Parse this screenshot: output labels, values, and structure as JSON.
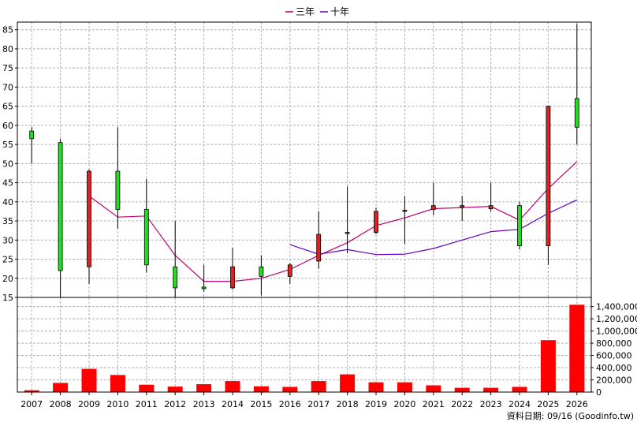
{
  "chart_data": {
    "type": "candlestick",
    "legend": [
      {
        "name": "三年",
        "color": "#c00070"
      },
      {
        "name": "十年",
        "color": "#6600cc"
      }
    ],
    "years": [
      "2007",
      "2008",
      "2009",
      "2010",
      "2011",
      "2012",
      "2013",
      "2014",
      "2015",
      "2016",
      "2017",
      "2018",
      "2019",
      "2020",
      "2021",
      "2022",
      "2023",
      "2024",
      "2025",
      "2026"
    ],
    "candles": [
      {
        "open": 56.5,
        "close": 58.5,
        "high": 59.5,
        "low": 50.0
      },
      {
        "open": 22.0,
        "close": 55.5,
        "high": 56.5,
        "low": 15.0
      },
      {
        "open": 48.0,
        "close": 23.0,
        "high": 48.5,
        "low": 18.5
      },
      {
        "open": 38.0,
        "close": 48.0,
        "high": 59.5,
        "low": 33.0
      },
      {
        "open": 23.5,
        "close": 38.0,
        "high": 46.0,
        "low": 21.5
      },
      {
        "open": 17.5,
        "close": 23.0,
        "high": 35.0,
        "low": 15.0
      },
      {
        "open": 17.3,
        "close": 17.7,
        "high": 23.5,
        "low": 16.5
      },
      {
        "open": 23.0,
        "close": 17.5,
        "high": 28.0,
        "low": 17.0
      },
      {
        "open": 20.5,
        "close": 23.0,
        "high": 26.0,
        "low": 15.5
      },
      {
        "open": 23.5,
        "close": 20.5,
        "high": 24.0,
        "low": 18.5
      },
      {
        "open": 31.5,
        "close": 24.5,
        "high": 37.5,
        "low": 22.5
      },
      {
        "open": 32.0,
        "close": 31.8,
        "high": 44.0,
        "low": 26.5
      },
      {
        "open": 37.5,
        "close": 32.0,
        "high": 38.5,
        "low": 31.5
      },
      {
        "open": 37.8,
        "close": 37.5,
        "high": 41.5,
        "low": 29.0
      },
      {
        "open": 39.0,
        "close": 38.0,
        "high": 45.0,
        "low": 36.5
      },
      {
        "open": 39.0,
        "close": 38.5,
        "high": 41.5,
        "low": 35.0
      },
      {
        "open": 39.0,
        "close": 38.2,
        "high": 45.0,
        "low": 37.5
      },
      {
        "open": 28.5,
        "close": 39.0,
        "high": 40.0,
        "low": 27.5
      },
      {
        "open": 65.0,
        "close": 28.5,
        "high": 65.0,
        "low": 23.5
      },
      {
        "open": 59.5,
        "close": 67.0,
        "high": 86.5,
        "low": 55.0
      }
    ],
    "ma3": [
      null,
      null,
      41.5,
      36.0,
      36.3,
      26.0,
      19.2,
      19.2,
      20.0,
      22.3,
      26.0,
      29.3,
      33.8,
      35.8,
      38.2,
      38.5,
      38.8,
      35.2,
      43.5,
      50.5
    ],
    "ma10": [
      null,
      null,
      null,
      null,
      null,
      null,
      null,
      null,
      null,
      28.8,
      26.3,
      27.5,
      26.2,
      26.3,
      27.8,
      30.0,
      32.2,
      32.8,
      37.0,
      40.5
    ],
    "volume": [
      30000,
      150000,
      380000,
      280000,
      120000,
      90000,
      130000,
      180000,
      95000,
      85000,
      180000,
      290000,
      160000,
      160000,
      110000,
      70000,
      70000,
      85000,
      850000,
      1430000
    ],
    "price_axis": {
      "min": 15,
      "max": 87,
      "ticks": [
        15,
        20,
        25,
        30,
        35,
        40,
        45,
        50,
        55,
        60,
        65,
        70,
        75,
        80,
        85
      ]
    },
    "volume_axis": {
      "min": 0,
      "max": 1550000,
      "ticks": [
        0,
        200000,
        400000,
        600000,
        800000,
        1000000,
        1200000,
        1400000
      ],
      "tick_labels": [
        "0",
        "200,000",
        "400,000",
        "600,000",
        "800,000",
        "1,000,000",
        "1,200,000",
        "1,400,000"
      ]
    },
    "colors": {
      "up": "#22dd22",
      "down": "#dd2222",
      "volume": "#ff0000",
      "grid": "#b0b0b0",
      "frame": "#000000"
    }
  },
  "footer": {
    "text": "資料日期: 09/16  (Goodinfo.tw)"
  }
}
